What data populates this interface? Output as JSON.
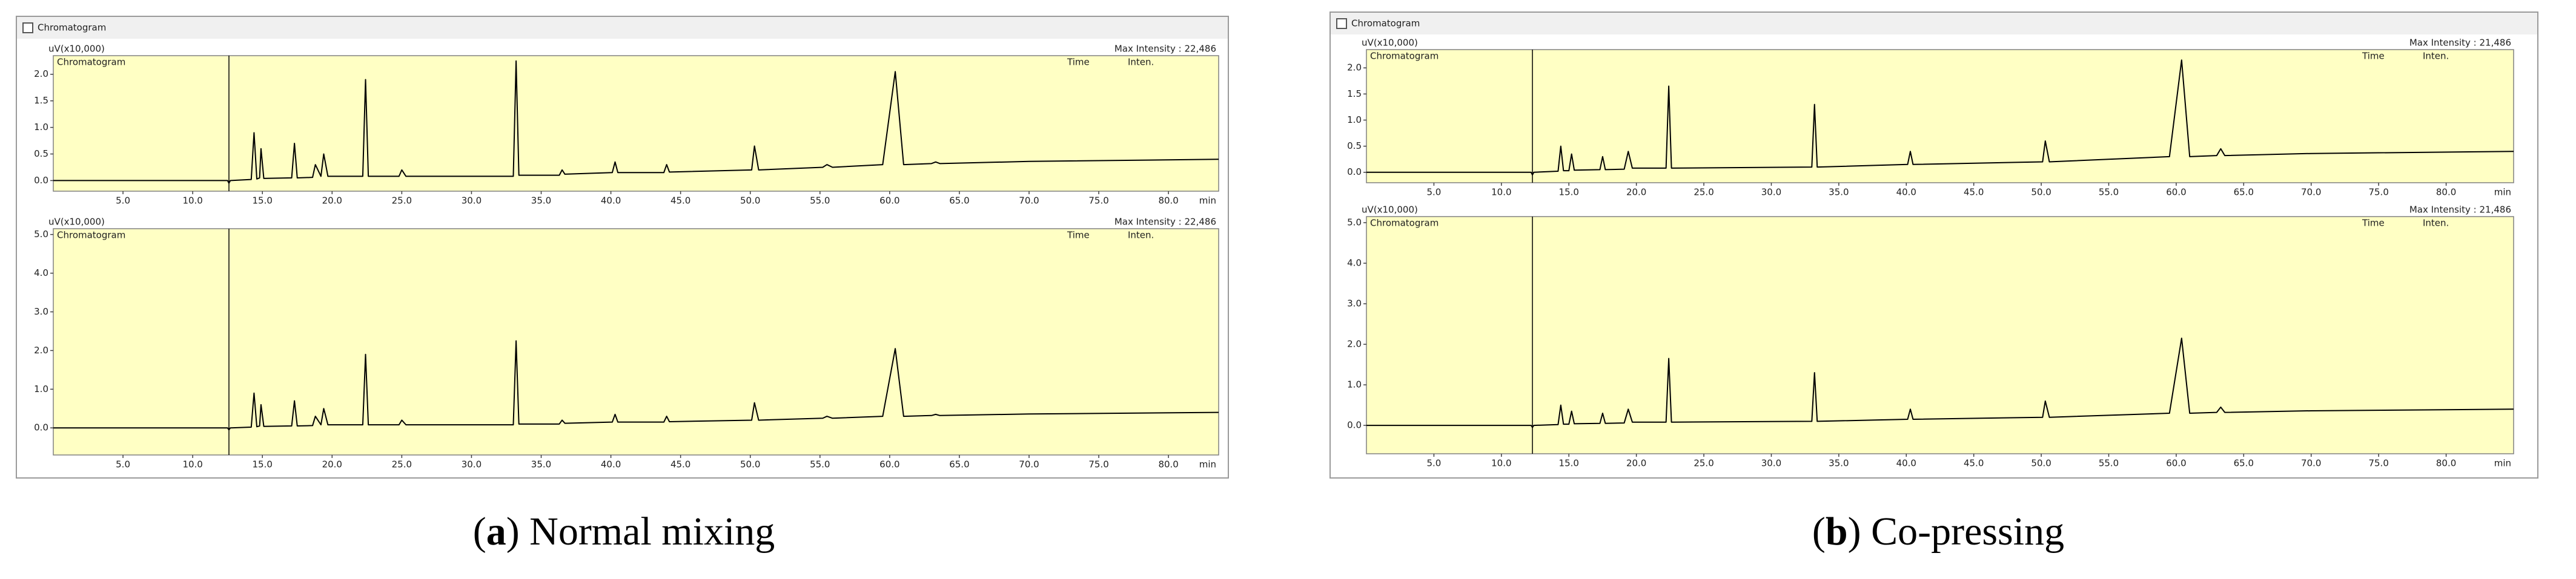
{
  "figure": {
    "panels": [
      {
        "window_title": "Chromatogram",
        "caption": [
          "(",
          "a",
          ") Normal mixing"
        ]
      },
      {
        "window_title": "Chromatogram",
        "caption": [
          "(",
          "b",
          ") Co-pressing"
        ]
      }
    ]
  },
  "chart_data": [
    {
      "type": "line",
      "title": "Chromatogram",
      "ylabel": "uV(x10,000)",
      "max_intensity_label": "Max Intensity : 22,486",
      "column_labels": [
        "Time",
        "Inten."
      ],
      "xunit": "min",
      "color": "#000000",
      "vline": 12.6,
      "x": [
        0,
        12.5,
        12.6,
        12.7,
        14.2,
        14.4,
        14.6,
        14.8,
        14.9,
        15.1,
        17.1,
        17.3,
        17.5,
        18.6,
        18.8,
        19.2,
        19.4,
        19.7,
        22.2,
        22.4,
        22.6,
        24.8,
        25.0,
        25.3,
        33.0,
        33.2,
        33.4,
        36.3,
        36.5,
        36.7,
        40.1,
        40.3,
        40.5,
        43.8,
        44.0,
        44.2,
        50.1,
        50.3,
        50.6,
        55.2,
        55.5,
        55.9,
        59.5,
        60.4,
        61.0,
        63.0,
        63.3,
        63.6,
        70,
        83.6
      ],
      "values": [
        0,
        0,
        -0.05,
        0,
        0.02,
        0.9,
        0.03,
        0.05,
        0.6,
        0.04,
        0.05,
        0.7,
        0.05,
        0.06,
        0.3,
        0.08,
        0.5,
        0.08,
        0.08,
        1.9,
        0.08,
        0.08,
        0.2,
        0.08,
        0.08,
        2.25,
        0.1,
        0.1,
        0.2,
        0.12,
        0.15,
        0.35,
        0.15,
        0.15,
        0.3,
        0.16,
        0.2,
        0.65,
        0.2,
        0.25,
        0.3,
        0.25,
        0.3,
        2.05,
        0.3,
        0.32,
        0.35,
        0.32,
        0.36,
        0.4
      ],
      "xlim": [
        0,
        83.6
      ],
      "ylim": [
        -0.2,
        2.35
      ],
      "xticks": [
        {
          "value": 5,
          "label": "5.0"
        },
        {
          "value": 10,
          "label": "10.0"
        },
        {
          "value": 15,
          "label": "15.0"
        },
        {
          "value": 20,
          "label": "20.0"
        },
        {
          "value": 25,
          "label": "25.0"
        },
        {
          "value": 30,
          "label": "30.0"
        },
        {
          "value": 35,
          "label": "35.0"
        },
        {
          "value": 40,
          "label": "40.0"
        },
        {
          "value": 45,
          "label": "45.0"
        },
        {
          "value": 50,
          "label": "50.0"
        },
        {
          "value": 55,
          "label": "55.0"
        },
        {
          "value": 60,
          "label": "60.0"
        },
        {
          "value": 65,
          "label": "65.0"
        },
        {
          "value": 70,
          "label": "70.0"
        },
        {
          "value": 75,
          "label": "75.0"
        },
        {
          "value": 80,
          "label": "80.0"
        }
      ],
      "yticks": [
        {
          "value": 0,
          "label": "0.0"
        },
        {
          "value": 0.5,
          "label": "0.5"
        },
        {
          "value": 1,
          "label": "1.0"
        },
        {
          "value": 1.5,
          "label": "1.5"
        },
        {
          "value": 2,
          "label": "2.0"
        }
      ]
    },
    {
      "type": "line",
      "title": "Chromatogram",
      "ylabel": "uV(x10,000)",
      "max_intensity_label": "Max Intensity : 22,486",
      "column_labels": [
        "Time",
        "Inten."
      ],
      "xunit": "min",
      "color": "#000000",
      "vline": 12.6,
      "x": [
        0,
        12.5,
        12.6,
        12.7,
        14.2,
        14.4,
        14.6,
        14.8,
        14.9,
        15.1,
        17.1,
        17.3,
        17.5,
        18.6,
        18.8,
        19.2,
        19.4,
        19.7,
        22.2,
        22.4,
        22.6,
        24.8,
        25.0,
        25.3,
        33.0,
        33.2,
        33.4,
        36.3,
        36.5,
        36.7,
        40.1,
        40.3,
        40.5,
        43.8,
        44.0,
        44.2,
        50.1,
        50.3,
        50.6,
        55.2,
        55.5,
        55.9,
        59.5,
        60.4,
        61.0,
        63.0,
        63.3,
        63.6,
        70,
        83.6
      ],
      "values": [
        0,
        0,
        -0.05,
        0,
        0.02,
        0.9,
        0.03,
        0.05,
        0.6,
        0.04,
        0.05,
        0.7,
        0.05,
        0.06,
        0.3,
        0.08,
        0.5,
        0.08,
        0.08,
        1.9,
        0.08,
        0.08,
        0.2,
        0.08,
        0.08,
        2.25,
        0.1,
        0.1,
        0.2,
        0.12,
        0.15,
        0.35,
        0.15,
        0.15,
        0.3,
        0.16,
        0.2,
        0.65,
        0.2,
        0.25,
        0.3,
        0.25,
        0.3,
        2.05,
        0.3,
        0.32,
        0.35,
        0.32,
        0.36,
        0.4
      ],
      "xlim": [
        0,
        83.6
      ],
      "ylim": [
        -0.7,
        5.15
      ],
      "xticks": [
        {
          "value": 5,
          "label": "5.0"
        },
        {
          "value": 10,
          "label": "10.0"
        },
        {
          "value": 15,
          "label": "15.0"
        },
        {
          "value": 20,
          "label": "20.0"
        },
        {
          "value": 25,
          "label": "25.0"
        },
        {
          "value": 30,
          "label": "30.0"
        },
        {
          "value": 35,
          "label": "35.0"
        },
        {
          "value": 40,
          "label": "40.0"
        },
        {
          "value": 45,
          "label": "45.0"
        },
        {
          "value": 50,
          "label": "50.0"
        },
        {
          "value": 55,
          "label": "55.0"
        },
        {
          "value": 60,
          "label": "60.0"
        },
        {
          "value": 65,
          "label": "65.0"
        },
        {
          "value": 70,
          "label": "70.0"
        },
        {
          "value": 75,
          "label": "75.0"
        },
        {
          "value": 80,
          "label": "80.0"
        }
      ],
      "yticks": [
        {
          "value": 0,
          "label": "0.0"
        },
        {
          "value": 1,
          "label": "1.0"
        },
        {
          "value": 2,
          "label": "2.0"
        },
        {
          "value": 3,
          "label": "3.0"
        },
        {
          "value": 4,
          "label": "4.0"
        },
        {
          "value": 5,
          "label": "5.0"
        }
      ]
    },
    {
      "type": "line",
      "title": "Chromatogram",
      "ylabel": "uV(x10,000)",
      "max_intensity_label": "Max Intensity : 21,486",
      "column_labels": [
        "Time",
        "Inten."
      ],
      "xunit": "min",
      "color": "#000000",
      "vline": 12.3,
      "x": [
        0,
        12.2,
        12.3,
        12.4,
        14.2,
        14.4,
        14.6,
        15.0,
        15.2,
        15.4,
        17.3,
        17.5,
        17.7,
        19.1,
        19.4,
        19.7,
        22.2,
        22.4,
        22.6,
        33.0,
        33.2,
        33.4,
        40.1,
        40.3,
        40.5,
        50.1,
        50.3,
        50.6,
        59.5,
        60.4,
        61.0,
        63.0,
        63.3,
        63.6,
        70,
        85
      ],
      "values": [
        0,
        0,
        -0.05,
        0,
        0.02,
        0.5,
        0.03,
        0.03,
        0.35,
        0.04,
        0.05,
        0.3,
        0.05,
        0.06,
        0.4,
        0.08,
        0.08,
        1.65,
        0.08,
        0.1,
        1.3,
        0.1,
        0.15,
        0.4,
        0.15,
        0.2,
        0.6,
        0.2,
        0.3,
        2.15,
        0.3,
        0.32,
        0.45,
        0.32,
        0.36,
        0.4
      ],
      "xlim": [
        0,
        85
      ],
      "ylim": [
        -0.2,
        2.35
      ],
      "xticks": [
        {
          "value": 5,
          "label": "5.0"
        },
        {
          "value": 10,
          "label": "10.0"
        },
        {
          "value": 15,
          "label": "15.0"
        },
        {
          "value": 20,
          "label": "20.0"
        },
        {
          "value": 25,
          "label": "25.0"
        },
        {
          "value": 30,
          "label": "30.0"
        },
        {
          "value": 35,
          "label": "35.0"
        },
        {
          "value": 40,
          "label": "40.0"
        },
        {
          "value": 45,
          "label": "45.0"
        },
        {
          "value": 50,
          "label": "50.0"
        },
        {
          "value": 55,
          "label": "55.0"
        },
        {
          "value": 60,
          "label": "60.0"
        },
        {
          "value": 65,
          "label": "65.0"
        },
        {
          "value": 70,
          "label": "70.0"
        },
        {
          "value": 75,
          "label": "75.0"
        },
        {
          "value": 80,
          "label": "80.0"
        }
      ],
      "yticks": [
        {
          "value": 0,
          "label": "0.0"
        },
        {
          "value": 0.5,
          "label": "0.5"
        },
        {
          "value": 1,
          "label": "1.0"
        },
        {
          "value": 1.5,
          "label": "1.5"
        },
        {
          "value": 2,
          "label": "2.0"
        }
      ]
    },
    {
      "type": "line",
      "title": "Chromatogram",
      "ylabel": "uV(x10,000)",
      "max_intensity_label": "Max Intensity : 21,486",
      "column_labels": [
        "Time",
        "Inten."
      ],
      "xunit": "min",
      "color": "#000000",
      "vline": 12.3,
      "x": [
        0,
        12.2,
        12.3,
        12.4,
        14.2,
        14.4,
        14.6,
        15.0,
        15.2,
        15.4,
        17.3,
        17.5,
        17.7,
        19.1,
        19.4,
        19.7,
        22.2,
        22.4,
        22.6,
        33.0,
        33.2,
        33.4,
        40.1,
        40.3,
        40.5,
        50.1,
        50.3,
        50.6,
        59.5,
        60.4,
        61.0,
        63.0,
        63.3,
        63.6,
        70,
        85
      ],
      "values": [
        0,
        0,
        -0.05,
        0,
        0.02,
        0.5,
        0.03,
        0.03,
        0.35,
        0.04,
        0.05,
        0.3,
        0.05,
        0.06,
        0.4,
        0.08,
        0.08,
        1.65,
        0.08,
        0.1,
        1.3,
        0.1,
        0.15,
        0.4,
        0.15,
        0.2,
        0.6,
        0.2,
        0.3,
        2.15,
        0.3,
        0.32,
        0.45,
        0.32,
        0.36,
        0.4
      ],
      "xlim": [
        0,
        85
      ],
      "ylim": [
        -0.7,
        5.15
      ],
      "xticks": [
        {
          "value": 5,
          "label": "5.0"
        },
        {
          "value": 10,
          "label": "10.0"
        },
        {
          "value": 15,
          "label": "15.0"
        },
        {
          "value": 20,
          "label": "20.0"
        },
        {
          "value": 25,
          "label": "25.0"
        },
        {
          "value": 30,
          "label": "30.0"
        },
        {
          "value": 35,
          "label": "35.0"
        },
        {
          "value": 40,
          "label": "40.0"
        },
        {
          "value": 45,
          "label": "45.0"
        },
        {
          "value": 50,
          "label": "50.0"
        },
        {
          "value": 55,
          "label": "55.0"
        },
        {
          "value": 60,
          "label": "60.0"
        },
        {
          "value": 65,
          "label": "65.0"
        },
        {
          "value": 70,
          "label": "70.0"
        },
        {
          "value": 75,
          "label": "75.0"
        },
        {
          "value": 80,
          "label": "80.0"
        }
      ],
      "yticks": [
        {
          "value": 0,
          "label": "0.0"
        },
        {
          "value": 1,
          "label": "1.0"
        },
        {
          "value": 2,
          "label": "2.0"
        },
        {
          "value": 3,
          "label": "3.0"
        },
        {
          "value": 4,
          "label": "4.0"
        },
        {
          "value": 5,
          "label": "5.0"
        }
      ]
    }
  ]
}
